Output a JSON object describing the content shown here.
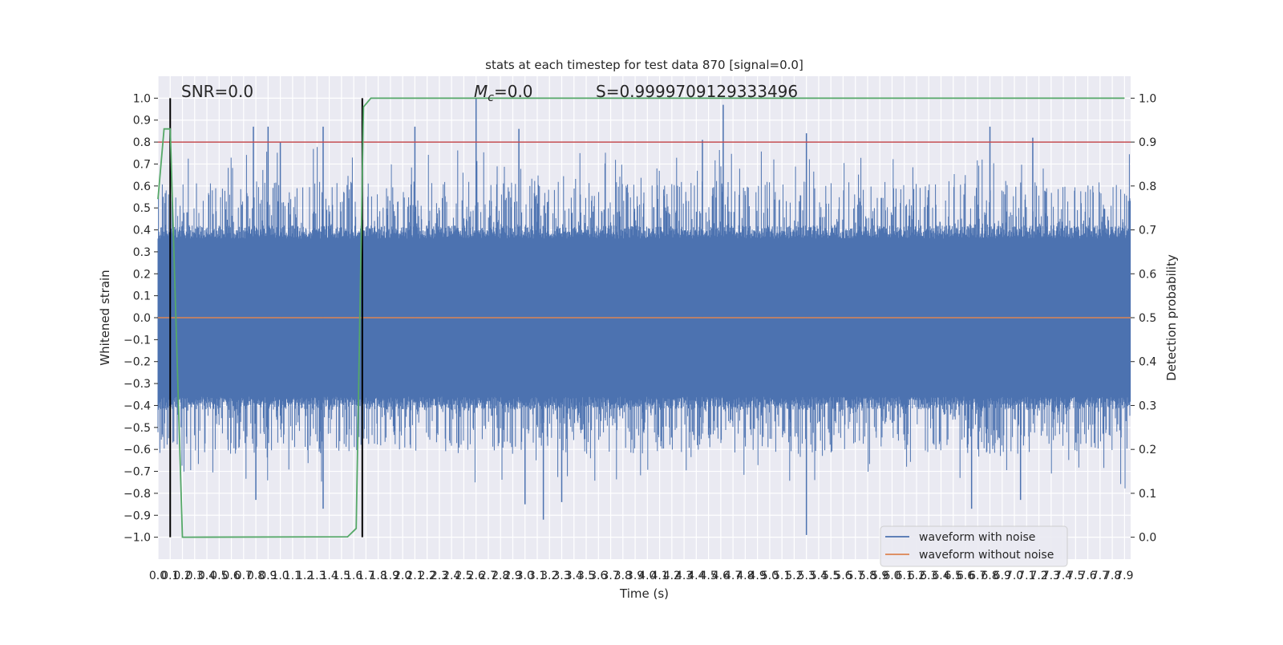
{
  "chart_data": {
    "type": "line",
    "title": "stats at each timestep for test data 870 [signal=0.0]",
    "xlabel": "Time (s)",
    "ylabel_left": "Whitened strain",
    "ylabel_right": "Detection probability",
    "xlim": [
      0.0,
      7.95
    ],
    "ylim_left": [
      -1.1,
      1.1
    ],
    "ylim_right": [
      -0.05,
      1.05
    ],
    "x_ticks": [
      "0.0",
      "0.1",
      "0.2",
      "0.3",
      "0.4",
      "0.5",
      "0.6",
      "0.7",
      "0.8",
      "0.9",
      "1.0",
      "1.1",
      "1.2",
      "1.3",
      "1.4",
      "1.5",
      "1.6",
      "1.7",
      "1.8",
      "1.9",
      "2.0",
      "2.1",
      "2.2",
      "2.3",
      "2.4",
      "2.5",
      "2.6",
      "2.7",
      "2.8",
      "2.9",
      "3.0",
      "3.1",
      "3.2",
      "3.3",
      "3.4",
      "3.5",
      "3.6",
      "3.7",
      "3.8",
      "3.9",
      "4.0",
      "4.1",
      "4.2",
      "4.3",
      "4.4",
      "4.5",
      "4.6",
      "4.7",
      "4.8",
      "4.9",
      "5.0",
      "5.1",
      "5.2",
      "5.3",
      "5.4",
      "5.5",
      "5.6",
      "5.7",
      "5.8",
      "5.9",
      "6.0",
      "6.1",
      "6.2",
      "6.3",
      "6.4",
      "6.5",
      "6.6",
      "6.7",
      "6.8",
      "6.9",
      "7.0",
      "7.1",
      "7.2",
      "7.3",
      "7.4",
      "7.5",
      "7.6",
      "7.7",
      "7.8",
      "7.9"
    ],
    "y_ticks_left": [
      "1.0",
      "0.9",
      "0.8",
      "0.7",
      "0.6",
      "0.5",
      "0.4",
      "0.3",
      "0.2",
      "0.1",
      "0.0",
      "−0.1",
      "−0.2",
      "−0.3",
      "−0.4",
      "−0.5",
      "−0.6",
      "−0.7",
      "−0.8",
      "−0.9",
      "−1.0"
    ],
    "y_ticks_right": [
      "1.0",
      "0.9",
      "0.8",
      "0.7",
      "0.6",
      "0.5",
      "0.4",
      "0.3",
      "0.2",
      "0.1",
      "0.0"
    ],
    "annotations": {
      "snr": "SNR=0.0",
      "mc_symbol": "M",
      "mc_sub": "c",
      "mc_value": "=0.0",
      "s": "S=0.9999709129333496"
    },
    "series": [
      {
        "name": "waveform with noise",
        "axis": "left",
        "color": "#4c72b0",
        "description": "dense noise, roughly ±0.4 with spikes up to about ±1.0",
        "spikes_top": [
          [
            0.78,
            0.87
          ],
          [
            0.9,
            0.87
          ],
          [
            1.0,
            0.8
          ],
          [
            1.35,
            0.87
          ],
          [
            2.1,
            0.87
          ],
          [
            2.6,
            1.0
          ],
          [
            2.95,
            0.86
          ],
          [
            4.45,
            0.81
          ],
          [
            4.62,
            0.97
          ],
          [
            5.3,
            0.84
          ],
          [
            6.8,
            0.87
          ],
          [
            7.15,
            0.82
          ]
        ],
        "spikes_bottom": [
          [
            0.8,
            -0.83
          ],
          [
            1.35,
            -0.87
          ],
          [
            3.0,
            -0.85
          ],
          [
            3.15,
            -0.92
          ],
          [
            3.3,
            -0.84
          ],
          [
            5.3,
            -0.99
          ],
          [
            6.65,
            -0.87
          ],
          [
            7.05,
            -0.83
          ]
        ]
      },
      {
        "name": "waveform without noise",
        "axis": "left",
        "color": "#dd8452",
        "x": [
          0.0,
          7.95
        ],
        "y": [
          0.0,
          0.0
        ]
      },
      {
        "name": "detection probability",
        "axis": "right",
        "color": "#55a868",
        "x": [
          0.0,
          0.05,
          0.1,
          0.2,
          0.25,
          1.55,
          1.62,
          1.68,
          1.74,
          1.8,
          7.9
        ],
        "y": [
          0.77,
          0.93,
          0.93,
          0.0,
          0.0,
          0.001,
          0.02,
          0.98,
          1.0,
          1.0,
          1.0
        ]
      }
    ],
    "threshold_line": {
      "axis": "left",
      "value": 0.8,
      "color": "#c44e52"
    },
    "vertical_markers": {
      "color": "#000000",
      "x": [
        0.1,
        1.67
      ],
      "y_range": [
        -1.0,
        1.0
      ]
    },
    "legend": {
      "placement": "lower-right",
      "entries": [
        "waveform with noise",
        "waveform without noise"
      ]
    },
    "grid": true,
    "style": {
      "axes_bg": "#eaeaf2",
      "grid_color": "#ffffff"
    }
  }
}
